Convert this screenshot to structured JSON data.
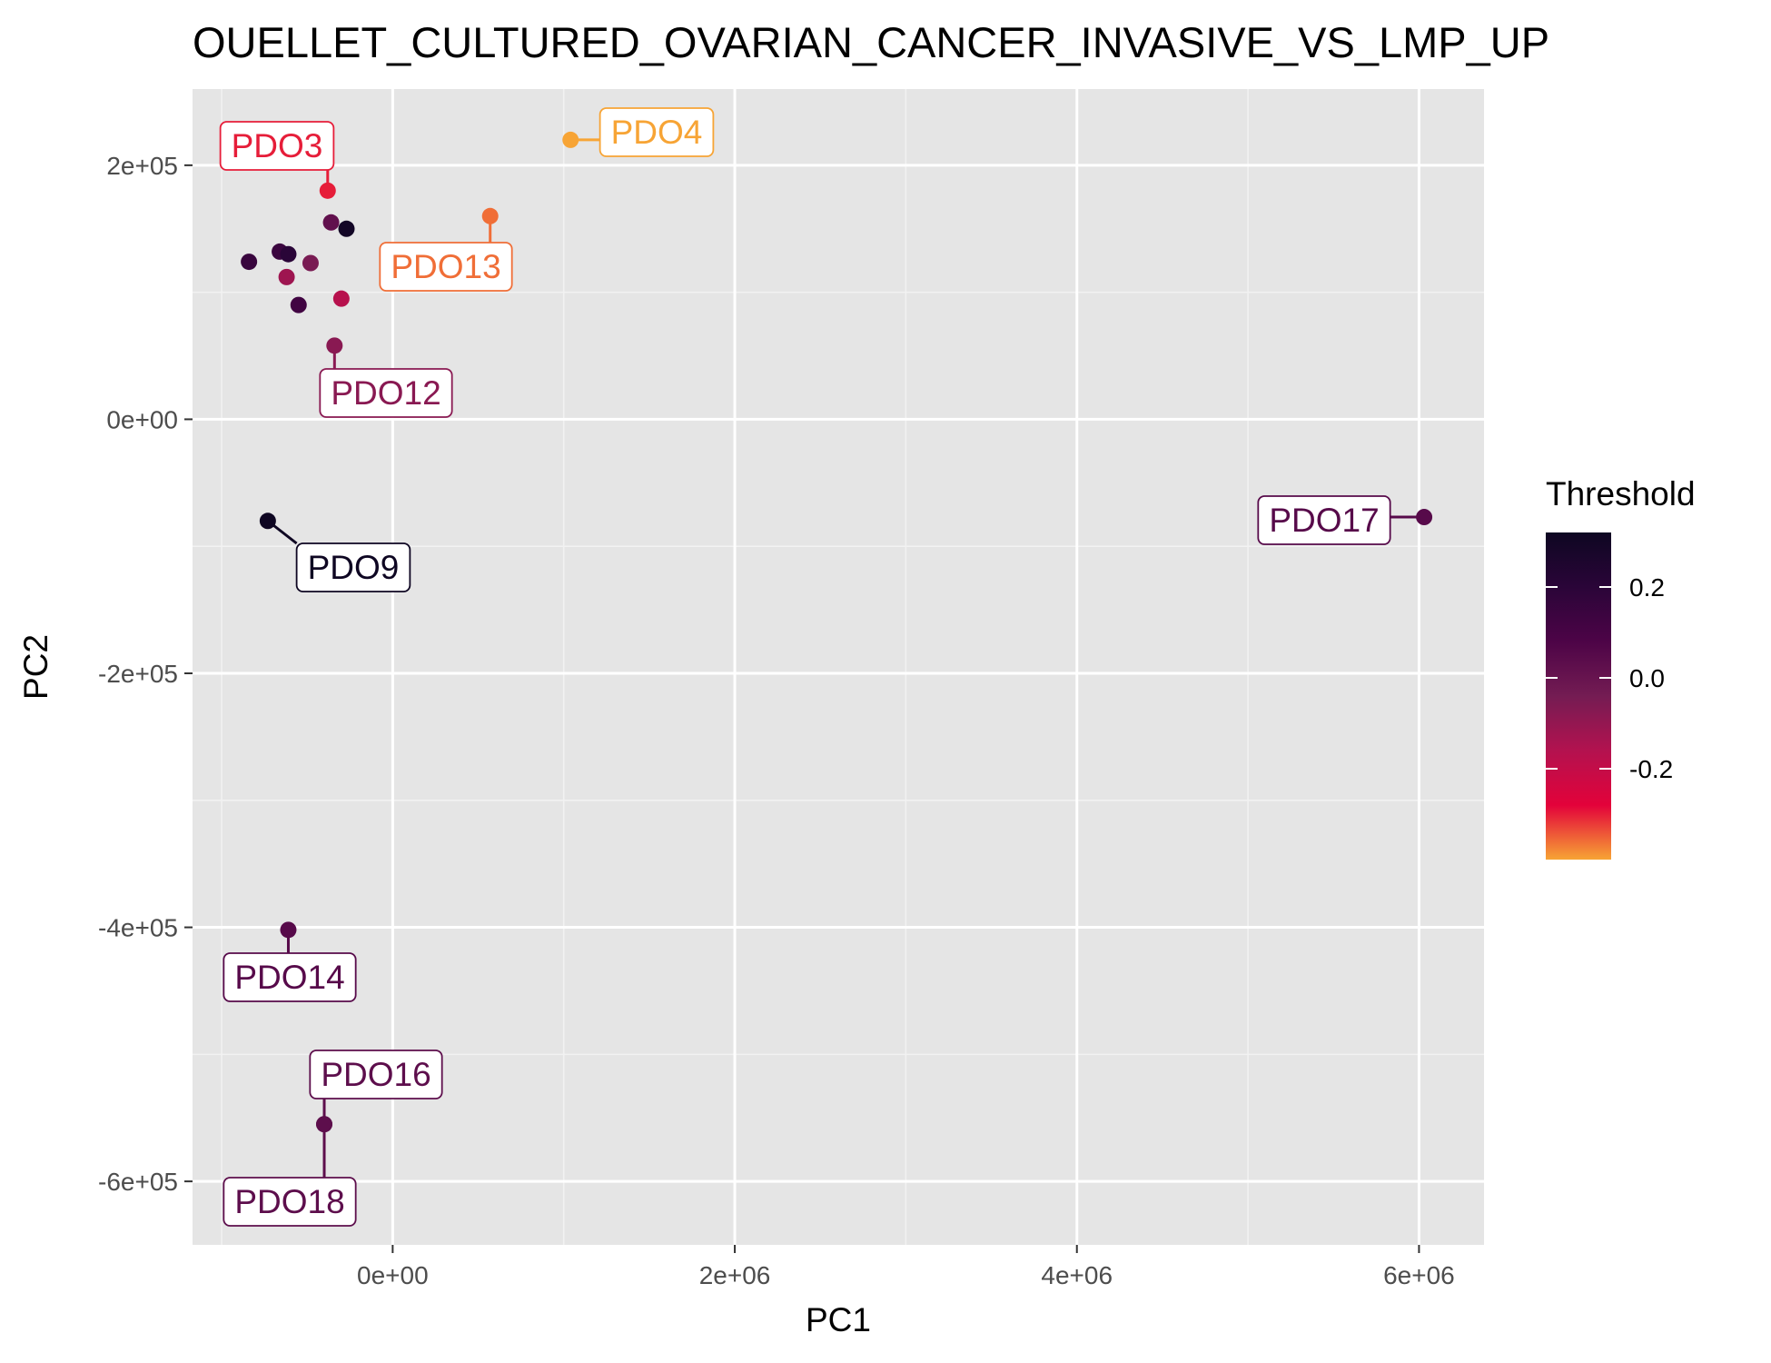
{
  "chart_data": {
    "type": "scatter",
    "title": "OUELLET_CULTURED_OVARIAN_CANCER_INVASIVE_VS_LMP_UP",
    "xlabel": "PC1",
    "ylabel": "PC2",
    "xlim": [
      -1170000,
      6380000
    ],
    "ylim": [
      -650000,
      260000
    ],
    "x_ticks": [
      0,
      2000000,
      4000000,
      6000000
    ],
    "x_tick_labels": [
      "0e+00",
      "2e+06",
      "4e+06",
      "6e+06"
    ],
    "y_ticks": [
      -600000,
      -400000,
      -200000,
      0,
      200000
    ],
    "y_tick_labels": [
      "-6e+05",
      "-4e+05",
      "-2e+05",
      "0e+00",
      "2e+05"
    ],
    "grid": true,
    "background": "#e5e5e5",
    "legend": {
      "title": "Threshold",
      "placement": "right",
      "min": -0.4,
      "max": 0.32,
      "ticks": [
        0.2,
        0.0,
        -0.2
      ],
      "tick_labels": [
        "0.2",
        "0.0",
        "-0.2"
      ],
      "colormap": [
        "#f7a435",
        "#e3023a",
        "#b3124f",
        "#741c53",
        "#4d0447",
        "#2a0538",
        "#0e0622"
      ]
    },
    "points": [
      {
        "x": -840000,
        "y": 124000,
        "threshold": 0.15,
        "label": ""
      },
      {
        "x": -660000,
        "y": 132000,
        "threshold": 0.14,
        "label": ""
      },
      {
        "x": -610000,
        "y": 130000,
        "threshold": 0.2,
        "label": ""
      },
      {
        "x": -620000,
        "y": 112000,
        "threshold": -0.12,
        "label": ""
      },
      {
        "x": -480000,
        "y": 123000,
        "threshold": -0.05,
        "label": ""
      },
      {
        "x": -550000,
        "y": 90000,
        "threshold": 0.12,
        "label": ""
      },
      {
        "x": -380000,
        "y": 180000,
        "threshold": -0.3,
        "label": "PDO3"
      },
      {
        "x": -360000,
        "y": 155000,
        "threshold": 0.02,
        "label": ""
      },
      {
        "x": -270000,
        "y": 150000,
        "threshold": 0.3,
        "label": ""
      },
      {
        "x": 1040000,
        "y": 220000,
        "threshold": -0.4,
        "label": "PDO4"
      },
      {
        "x": 570000,
        "y": 160000,
        "threshold": -0.36,
        "label": "PDO13"
      },
      {
        "x": -300000,
        "y": 95000,
        "threshold": -0.17,
        "label": ""
      },
      {
        "x": -340000,
        "y": 58000,
        "threshold": -0.08,
        "label": "PDO12"
      },
      {
        "x": -730000,
        "y": -80000,
        "threshold": 0.32,
        "label": "PDO9"
      },
      {
        "x": 6030000,
        "y": -77000,
        "threshold": 0.05,
        "label": "PDO17"
      },
      {
        "x": -610000,
        "y": -402000,
        "threshold": 0.05,
        "label": "PDO14"
      },
      {
        "x": -400000,
        "y": -555000,
        "threshold": 0.03,
        "label": "PDO16"
      },
      {
        "x": -400000,
        "y": -555000,
        "threshold": 0.03,
        "label": "PDO18"
      }
    ]
  }
}
